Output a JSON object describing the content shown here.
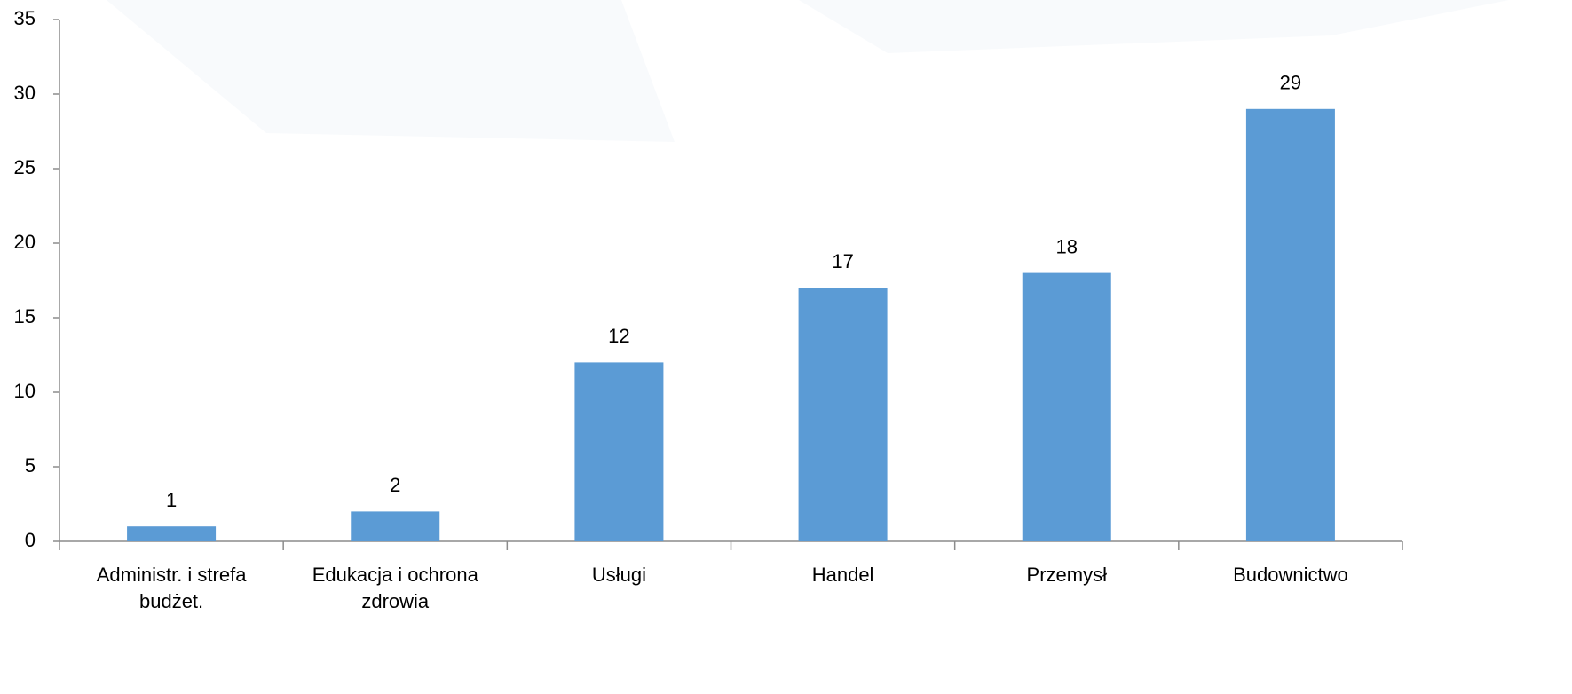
{
  "chart_data": {
    "type": "bar",
    "categories": [
      "Administr. i strefa budżet.",
      "Edukacja i ochrona zdrowia",
      "Usługi",
      "Handel",
      "Przemysł",
      "Budownictwo"
    ],
    "values": [
      1,
      2,
      12,
      17,
      18,
      29
    ],
    "color": "#5b9bd5",
    "ylim": [
      0,
      35
    ],
    "yticks": [
      0,
      5,
      10,
      15,
      20,
      25,
      30,
      35
    ],
    "grid": false
  }
}
